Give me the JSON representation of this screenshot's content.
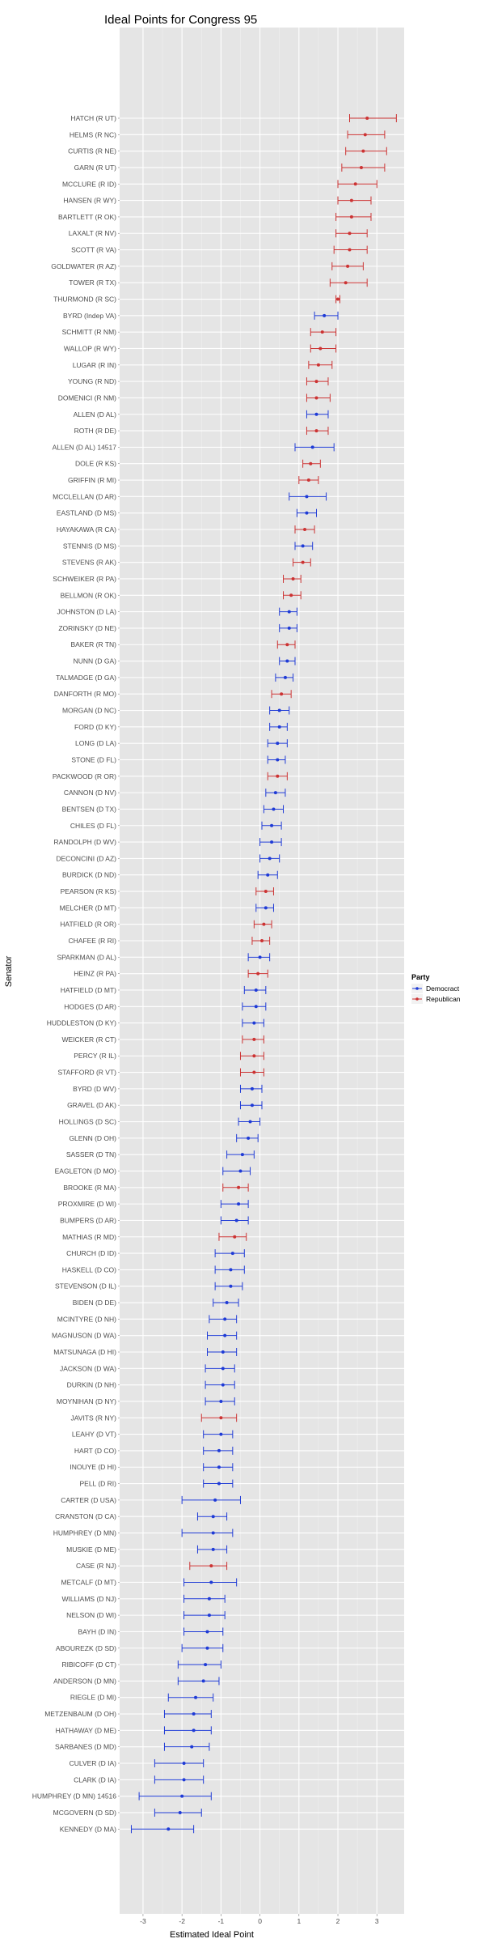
{
  "chart_data": {
    "type": "scatter",
    "title": "Ideal Points for Congress 95",
    "xlabel": "Estimated Ideal Point",
    "ylabel": "Senator",
    "xlim": [
      -3.6,
      3.7
    ],
    "xticks": [
      -3,
      -2,
      -1,
      0,
      1,
      2,
      3
    ],
    "grid": true,
    "error_bars": true,
    "legend": {
      "title": "Party",
      "position": "right",
      "entries": [
        {
          "name": "Democract",
          "color": "#1f3bd6"
        },
        {
          "name": "Republican",
          "color": "#cc3333"
        }
      ]
    },
    "colors": {
      "D": "#1f3bd6",
      "R": "#cc3333",
      "I": "#1f3bd6"
    },
    "points": [
      {
        "label": "HATCH (R UT)",
        "party": "R",
        "x": 2.75,
        "lo": 2.3,
        "hi": 3.5
      },
      {
        "label": "HELMS (R NC)",
        "party": "R",
        "x": 2.7,
        "lo": 2.25,
        "hi": 3.2
      },
      {
        "label": "CURTIS (R NE)",
        "party": "R",
        "x": 2.65,
        "lo": 2.2,
        "hi": 3.25
      },
      {
        "label": "GARN (R UT)",
        "party": "R",
        "x": 2.6,
        "lo": 2.1,
        "hi": 3.2
      },
      {
        "label": "MCCLURE (R ID)",
        "party": "R",
        "x": 2.45,
        "lo": 2.0,
        "hi": 3.0
      },
      {
        "label": "HANSEN (R WY)",
        "party": "R",
        "x": 2.35,
        "lo": 2.0,
        "hi": 2.85
      },
      {
        "label": "BARTLETT (R OK)",
        "party": "R",
        "x": 2.35,
        "lo": 1.95,
        "hi": 2.85
      },
      {
        "label": "LAXALT (R NV)",
        "party": "R",
        "x": 2.3,
        "lo": 1.95,
        "hi": 2.75
      },
      {
        "label": "SCOTT (R VA)",
        "party": "R",
        "x": 2.3,
        "lo": 1.9,
        "hi": 2.75
      },
      {
        "label": "GOLDWATER (R AZ)",
        "party": "R",
        "x": 2.25,
        "lo": 1.85,
        "hi": 2.65
      },
      {
        "label": "TOWER (R TX)",
        "party": "R",
        "x": 2.2,
        "lo": 1.8,
        "hi": 2.75
      },
      {
        "label": "THURMOND (R SC)",
        "party": "R",
        "x": 2.0,
        "lo": 1.95,
        "hi": 2.05
      },
      {
        "label": "BYRD (Indep VA)",
        "party": "I",
        "x": 1.65,
        "lo": 1.4,
        "hi": 2.0
      },
      {
        "label": "SCHMITT (R NM)",
        "party": "R",
        "x": 1.6,
        "lo": 1.3,
        "hi": 1.95
      },
      {
        "label": "WALLOP (R WY)",
        "party": "R",
        "x": 1.55,
        "lo": 1.3,
        "hi": 1.95
      },
      {
        "label": "LUGAR (R IN)",
        "party": "R",
        "x": 1.5,
        "lo": 1.25,
        "hi": 1.85
      },
      {
        "label": "YOUNG (R ND)",
        "party": "R",
        "x": 1.45,
        "lo": 1.2,
        "hi": 1.75
      },
      {
        "label": "DOMENICI (R NM)",
        "party": "R",
        "x": 1.45,
        "lo": 1.2,
        "hi": 1.8
      },
      {
        "label": "ALLEN (D AL)",
        "party": "D",
        "x": 1.45,
        "lo": 1.2,
        "hi": 1.75
      },
      {
        "label": "ROTH (R DE)",
        "party": "R",
        "x": 1.45,
        "lo": 1.2,
        "hi": 1.75
      },
      {
        "label": "ALLEN (D AL) 14517",
        "party": "D",
        "x": 1.35,
        "lo": 0.9,
        "hi": 1.9
      },
      {
        "label": "DOLE (R KS)",
        "party": "R",
        "x": 1.3,
        "lo": 1.1,
        "hi": 1.55
      },
      {
        "label": "GRIFFIN (R MI)",
        "party": "R",
        "x": 1.25,
        "lo": 1.0,
        "hi": 1.5
      },
      {
        "label": "MCCLELLAN (D AR)",
        "party": "D",
        "x": 1.2,
        "lo": 0.75,
        "hi": 1.7
      },
      {
        "label": "EASTLAND (D MS)",
        "party": "D",
        "x": 1.2,
        "lo": 0.95,
        "hi": 1.45
      },
      {
        "label": "HAYAKAWA (R CA)",
        "party": "R",
        "x": 1.15,
        "lo": 0.9,
        "hi": 1.4
      },
      {
        "label": "STENNIS (D MS)",
        "party": "D",
        "x": 1.1,
        "lo": 0.9,
        "hi": 1.35
      },
      {
        "label": "STEVENS (R AK)",
        "party": "R",
        "x": 1.1,
        "lo": 0.85,
        "hi": 1.3
      },
      {
        "label": "SCHWEIKER (R PA)",
        "party": "R",
        "x": 0.85,
        "lo": 0.6,
        "hi": 1.05
      },
      {
        "label": "BELLMON (R OK)",
        "party": "R",
        "x": 0.8,
        "lo": 0.6,
        "hi": 1.05
      },
      {
        "label": "JOHNSTON (D LA)",
        "party": "D",
        "x": 0.75,
        "lo": 0.5,
        "hi": 0.95
      },
      {
        "label": "ZORINSKY (D NE)",
        "party": "D",
        "x": 0.75,
        "lo": 0.5,
        "hi": 0.95
      },
      {
        "label": "BAKER (R TN)",
        "party": "R",
        "x": 0.7,
        "lo": 0.45,
        "hi": 0.9
      },
      {
        "label": "NUNN (D GA)",
        "party": "D",
        "x": 0.7,
        "lo": 0.5,
        "hi": 0.9
      },
      {
        "label": "TALMADGE (D GA)",
        "party": "D",
        "x": 0.65,
        "lo": 0.4,
        "hi": 0.85
      },
      {
        "label": "DANFORTH (R MO)",
        "party": "R",
        "x": 0.55,
        "lo": 0.3,
        "hi": 0.8
      },
      {
        "label": "MORGAN (D NC)",
        "party": "D",
        "x": 0.5,
        "lo": 0.25,
        "hi": 0.75
      },
      {
        "label": "FORD (D KY)",
        "party": "D",
        "x": 0.5,
        "lo": 0.25,
        "hi": 0.7
      },
      {
        "label": "LONG (D LA)",
        "party": "D",
        "x": 0.45,
        "lo": 0.2,
        "hi": 0.7
      },
      {
        "label": "STONE (D FL)",
        "party": "D",
        "x": 0.45,
        "lo": 0.2,
        "hi": 0.65
      },
      {
        "label": "PACKWOOD (R OR)",
        "party": "R",
        "x": 0.45,
        "lo": 0.2,
        "hi": 0.7
      },
      {
        "label": "CANNON (D NV)",
        "party": "D",
        "x": 0.4,
        "lo": 0.15,
        "hi": 0.65
      },
      {
        "label": "BENTSEN (D TX)",
        "party": "D",
        "x": 0.35,
        "lo": 0.1,
        "hi": 0.6
      },
      {
        "label": "CHILES (D FL)",
        "party": "D",
        "x": 0.3,
        "lo": 0.05,
        "hi": 0.55
      },
      {
        "label": "RANDOLPH (D WV)",
        "party": "D",
        "x": 0.3,
        "lo": 0.0,
        "hi": 0.55
      },
      {
        "label": "DECONCINI (D AZ)",
        "party": "D",
        "x": 0.25,
        "lo": 0.0,
        "hi": 0.5
      },
      {
        "label": "BURDICK (D ND)",
        "party": "D",
        "x": 0.2,
        "lo": -0.05,
        "hi": 0.45
      },
      {
        "label": "PEARSON (R KS)",
        "party": "R",
        "x": 0.15,
        "lo": -0.1,
        "hi": 0.35
      },
      {
        "label": "MELCHER (D MT)",
        "party": "D",
        "x": 0.15,
        "lo": -0.1,
        "hi": 0.35
      },
      {
        "label": "HATFIELD (R OR)",
        "party": "R",
        "x": 0.1,
        "lo": -0.15,
        "hi": 0.3
      },
      {
        "label": "CHAFEE (R RI)",
        "party": "R",
        "x": 0.05,
        "lo": -0.2,
        "hi": 0.25
      },
      {
        "label": "SPARKMAN (D AL)",
        "party": "D",
        "x": 0.0,
        "lo": -0.3,
        "hi": 0.25
      },
      {
        "label": "HEINZ (R PA)",
        "party": "R",
        "x": -0.05,
        "lo": -0.3,
        "hi": 0.2
      },
      {
        "label": "HATFIELD (D MT)",
        "party": "D",
        "x": -0.1,
        "lo": -0.4,
        "hi": 0.15
      },
      {
        "label": "HODGES (D AR)",
        "party": "D",
        "x": -0.1,
        "lo": -0.45,
        "hi": 0.15
      },
      {
        "label": "HUDDLESTON (D KY)",
        "party": "D",
        "x": -0.15,
        "lo": -0.45,
        "hi": 0.1
      },
      {
        "label": "WEICKER (R CT)",
        "party": "R",
        "x": -0.15,
        "lo": -0.45,
        "hi": 0.1
      },
      {
        "label": "PERCY (R IL)",
        "party": "R",
        "x": -0.15,
        "lo": -0.5,
        "hi": 0.1
      },
      {
        "label": "STAFFORD (R VT)",
        "party": "R",
        "x": -0.15,
        "lo": -0.5,
        "hi": 0.1
      },
      {
        "label": "BYRD (D WV)",
        "party": "D",
        "x": -0.2,
        "lo": -0.5,
        "hi": 0.05
      },
      {
        "label": "GRAVEL (D AK)",
        "party": "D",
        "x": -0.2,
        "lo": -0.5,
        "hi": 0.05
      },
      {
        "label": "HOLLINGS (D SC)",
        "party": "D",
        "x": -0.25,
        "lo": -0.55,
        "hi": 0.0
      },
      {
        "label": "GLENN (D OH)",
        "party": "D",
        "x": -0.3,
        "lo": -0.6,
        "hi": -0.05
      },
      {
        "label": "SASSER (D TN)",
        "party": "D",
        "x": -0.45,
        "lo": -0.85,
        "hi": -0.15
      },
      {
        "label": "EAGLETON (D MO)",
        "party": "D",
        "x": -0.5,
        "lo": -0.95,
        "hi": -0.25
      },
      {
        "label": "BROOKE (R MA)",
        "party": "R",
        "x": -0.55,
        "lo": -0.95,
        "hi": -0.3
      },
      {
        "label": "PROXMIRE (D WI)",
        "party": "D",
        "x": -0.55,
        "lo": -1.0,
        "hi": -0.3
      },
      {
        "label": "BUMPERS (D AR)",
        "party": "D",
        "x": -0.6,
        "lo": -1.0,
        "hi": -0.3
      },
      {
        "label": "MATHIAS (R MD)",
        "party": "R",
        "x": -0.65,
        "lo": -1.05,
        "hi": -0.35
      },
      {
        "label": "CHURCH (D ID)",
        "party": "D",
        "x": -0.7,
        "lo": -1.15,
        "hi": -0.4
      },
      {
        "label": "HASKELL (D CO)",
        "party": "D",
        "x": -0.75,
        "lo": -1.15,
        "hi": -0.4
      },
      {
        "label": "STEVENSON (D IL)",
        "party": "D",
        "x": -0.75,
        "lo": -1.15,
        "hi": -0.45
      },
      {
        "label": "BIDEN (D DE)",
        "party": "D",
        "x": -0.85,
        "lo": -1.2,
        "hi": -0.55
      },
      {
        "label": "MCINTYRE (D NH)",
        "party": "D",
        "x": -0.9,
        "lo": -1.3,
        "hi": -0.6
      },
      {
        "label": "MAGNUSON (D WA)",
        "party": "D",
        "x": -0.9,
        "lo": -1.35,
        "hi": -0.6
      },
      {
        "label": "MATSUNAGA (D HI)",
        "party": "D",
        "x": -0.95,
        "lo": -1.35,
        "hi": -0.6
      },
      {
        "label": "JACKSON (D WA)",
        "party": "D",
        "x": -0.95,
        "lo": -1.4,
        "hi": -0.65
      },
      {
        "label": "DURKIN (D NH)",
        "party": "D",
        "x": -0.95,
        "lo": -1.4,
        "hi": -0.65
      },
      {
        "label": "MOYNIHAN (D NY)",
        "party": "D",
        "x": -1.0,
        "lo": -1.4,
        "hi": -0.65
      },
      {
        "label": "JAVITS (R NY)",
        "party": "R",
        "x": -1.0,
        "lo": -1.5,
        "hi": -0.6
      },
      {
        "label": "LEAHY (D VT)",
        "party": "D",
        "x": -1.0,
        "lo": -1.45,
        "hi": -0.7
      },
      {
        "label": "HART (D CO)",
        "party": "D",
        "x": -1.05,
        "lo": -1.45,
        "hi": -0.7
      },
      {
        "label": "INOUYE (D HI)",
        "party": "D",
        "x": -1.05,
        "lo": -1.45,
        "hi": -0.7
      },
      {
        "label": "PELL (D RI)",
        "party": "D",
        "x": -1.05,
        "lo": -1.45,
        "hi": -0.7
      },
      {
        "label": "CARTER (D USA)",
        "party": "D",
        "x": -1.15,
        "lo": -2.0,
        "hi": -0.5
      },
      {
        "label": "CRANSTON (D CA)",
        "party": "D",
        "x": -1.2,
        "lo": -1.6,
        "hi": -0.85
      },
      {
        "label": "HUMPHREY (D MN)",
        "party": "D",
        "x": -1.2,
        "lo": -2.0,
        "hi": -0.7
      },
      {
        "label": "MUSKIE (D ME)",
        "party": "D",
        "x": -1.2,
        "lo": -1.6,
        "hi": -0.85
      },
      {
        "label": "CASE (R NJ)",
        "party": "R",
        "x": -1.25,
        "lo": -1.8,
        "hi": -0.85
      },
      {
        "label": "METCALF (D MT)",
        "party": "D",
        "x": -1.25,
        "lo": -1.95,
        "hi": -0.6
      },
      {
        "label": "WILLIAMS (D NJ)",
        "party": "D",
        "x": -1.3,
        "lo": -1.95,
        "hi": -0.9
      },
      {
        "label": "NELSON (D WI)",
        "party": "D",
        "x": -1.3,
        "lo": -1.95,
        "hi": -0.9
      },
      {
        "label": "BAYH (D IN)",
        "party": "D",
        "x": -1.35,
        "lo": -1.95,
        "hi": -0.95
      },
      {
        "label": "ABOUREZK (D SD)",
        "party": "D",
        "x": -1.35,
        "lo": -2.0,
        "hi": -0.95
      },
      {
        "label": "RIBICOFF (D CT)",
        "party": "D",
        "x": -1.4,
        "lo": -2.1,
        "hi": -1.0
      },
      {
        "label": "ANDERSON (D MN)",
        "party": "D",
        "x": -1.45,
        "lo": -2.1,
        "hi": -1.05
      },
      {
        "label": "RIEGLE (D MI)",
        "party": "D",
        "x": -1.65,
        "lo": -2.35,
        "hi": -1.2
      },
      {
        "label": "METZENBAUM (D OH)",
        "party": "D",
        "x": -1.7,
        "lo": -2.45,
        "hi": -1.25
      },
      {
        "label": "HATHAWAY (D ME)",
        "party": "D",
        "x": -1.7,
        "lo": -2.45,
        "hi": -1.25
      },
      {
        "label": "SARBANES (D MD)",
        "party": "D",
        "x": -1.75,
        "lo": -2.45,
        "hi": -1.3
      },
      {
        "label": "CULVER (D IA)",
        "party": "D",
        "x": -1.95,
        "lo": -2.7,
        "hi": -1.45
      },
      {
        "label": "CLARK (D IA)",
        "party": "D",
        "x": -1.95,
        "lo": -2.7,
        "hi": -1.45
      },
      {
        "label": "HUMPHREY (D MN) 14516",
        "party": "D",
        "x": -2.0,
        "lo": -3.1,
        "hi": -1.25
      },
      {
        "label": "MCGOVERN (D SD)",
        "party": "D",
        "x": -2.05,
        "lo": -2.7,
        "hi": -1.5
      },
      {
        "label": "KENNEDY (D MA)",
        "party": "D",
        "x": -2.35,
        "lo": -3.3,
        "hi": -1.7
      }
    ]
  }
}
